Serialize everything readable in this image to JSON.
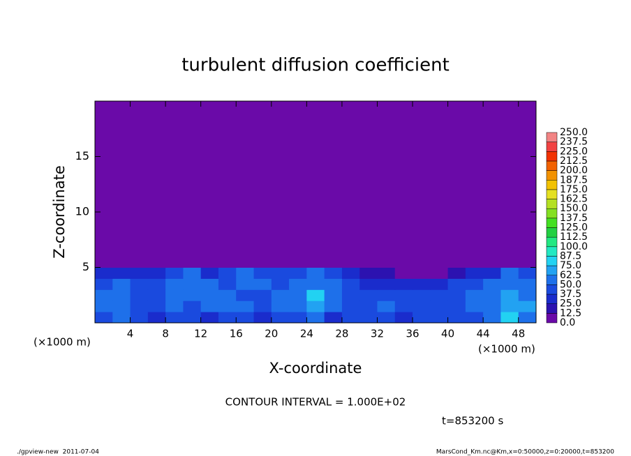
{
  "chart_data": {
    "type": "heatmap",
    "title": "turbulent diffusion coefficient",
    "x_label": "X-coordinate",
    "y_label": "Z-coordinate",
    "x_unit": "(×1000 m)",
    "contour_note": "CONTOUR INTERVAL = 1.000E+02",
    "time_note": "t=853200 s",
    "footer_left": "./gpview-new  2011-07-04",
    "footer_right": "MarsCond_Km.nc@Km,x=0:50000,z=0:20000,t=853200",
    "xlim": [
      0,
      50
    ],
    "ylim": [
      0,
      20
    ],
    "xticks": [
      4,
      8,
      12,
      16,
      20,
      24,
      28,
      32,
      36,
      40,
      44,
      48
    ],
    "yticks": [
      5,
      10,
      15
    ],
    "x_edges": [
      0,
      2,
      4,
      6,
      8,
      10,
      12,
      14,
      16,
      18,
      20,
      22,
      24,
      26,
      28,
      30,
      32,
      34,
      36,
      38,
      40,
      42,
      44,
      46,
      48,
      50
    ],
    "z_edges": [
      0,
      1,
      2,
      3,
      4,
      5,
      20
    ],
    "values": [
      [
        45,
        50,
        40,
        35,
        45,
        40,
        35,
        45,
        40,
        35,
        40,
        45,
        50,
        35,
        40,
        45,
        40,
        35,
        40,
        45,
        40,
        45,
        55,
        75,
        60
      ],
      [
        55,
        60,
        45,
        40,
        50,
        45,
        55,
        60,
        50,
        45,
        55,
        60,
        70,
        50,
        45,
        40,
        50,
        45,
        40,
        45,
        45,
        50,
        55,
        70,
        65
      ],
      [
        50,
        55,
        45,
        40,
        55,
        50,
        60,
        55,
        45,
        40,
        50,
        55,
        75,
        55,
        45,
        40,
        45,
        40,
        40,
        45,
        45,
        50,
        55,
        65,
        60
      ],
      [
        45,
        50,
        45,
        40,
        60,
        55,
        50,
        45,
        55,
        50,
        45,
        50,
        60,
        50,
        40,
        35,
        35,
        30,
        30,
        35,
        40,
        45,
        50,
        60,
        55
      ],
      [
        25,
        30,
        30,
        35,
        45,
        50,
        35,
        40,
        55,
        45,
        40,
        45,
        50,
        40,
        25,
        20,
        15,
        10,
        5,
        10,
        15,
        25,
        35,
        50,
        45
      ],
      [
        0,
        0,
        0,
        0,
        0,
        0,
        0,
        0,
        0,
        0,
        0,
        0,
        0,
        0,
        0,
        0,
        0,
        0,
        0,
        0,
        0,
        0,
        0,
        0,
        0
      ]
    ],
    "colorbar": {
      "levels": [
        {
          "value": 0,
          "label": "0.0"
        },
        12.5,
        {
          "value": 25,
          "label": "25.0"
        },
        37.5,
        {
          "value": 50,
          "label": "50.0"
        },
        62.5,
        {
          "value": 75,
          "label": "75.0"
        },
        87.5,
        {
          "value": 100,
          "label": "100.0"
        },
        112.5,
        {
          "value": 125,
          "label": "125.0"
        },
        137.5,
        {
          "value": 150,
          "label": "150.0"
        },
        162.5,
        {
          "value": 175,
          "label": "175.0"
        },
        187.5,
        {
          "value": 200,
          "label": "200.0"
        },
        212.5,
        {
          "value": 225,
          "label": "225.0"
        },
        237.5,
        {
          "value": 250,
          "label": "250.0"
        }
      ],
      "colors": [
        "#6a0aa8",
        "#2c12b0",
        "#1a2ccc",
        "#1a4ade",
        "#1e70ea",
        "#22a2f2",
        "#22d2f2",
        "#22e8c2",
        "#22e882",
        "#22d042",
        "#44e022",
        "#84e022",
        "#b4e022",
        "#e4e022",
        "#f2c202",
        "#f29202",
        "#f26202",
        "#f23202",
        "#f24242",
        "#f28484"
      ]
    }
  }
}
